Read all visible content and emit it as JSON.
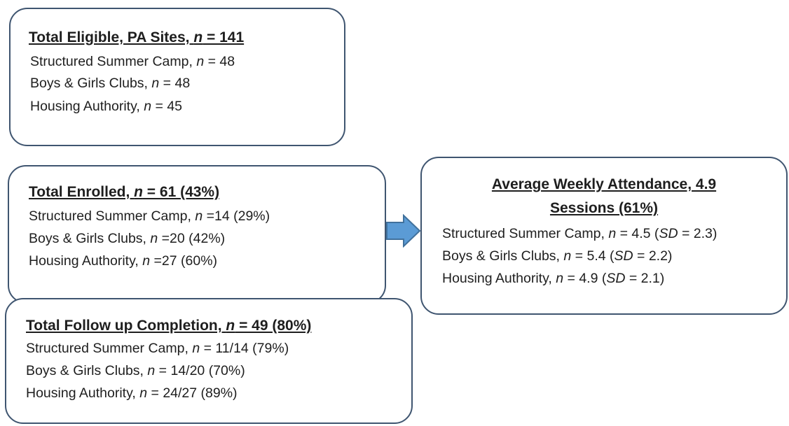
{
  "boxes": [
    {
      "title": [
        "Total Eligible, PA Sites, ",
        "n",
        " = 141"
      ],
      "lines": [
        [
          "Structured Summer Camp, ",
          "n",
          " = 48"
        ],
        [
          "Boys & Girls Clubs, ",
          "n",
          " = 48"
        ],
        [
          "Housing Authority, ",
          "n",
          " = 45"
        ]
      ]
    },
    {
      "title": [
        "Total Enrolled, ",
        "n",
        " = 61 (43%)"
      ],
      "lines": [
        [
          "Structured Summer Camp, ",
          "n",
          " =14 (29%)"
        ],
        [
          "Boys & Girls Clubs, ",
          "n",
          " =20 (42%)"
        ],
        [
          "Housing Authority, ",
          "n",
          " =27 (60%)"
        ]
      ]
    },
    {
      "title": [
        "Total Follow up Completion, ",
        "n",
        " = 49 (80%)"
      ],
      "lines": [
        [
          "Structured Summer Camp, ",
          "n",
          " = 11/14 (79%)"
        ],
        [
          "Boys & Girls Clubs, ",
          "n",
          " = 14/20 (70%)"
        ],
        [
          "Housing Authority, ",
          "n",
          " = 24/27 (89%)"
        ]
      ]
    },
    {
      "title_lines": [
        "Average Weekly Attendance, 4.9",
        "Sessions (61%)"
      ],
      "lines": [
        [
          "Structured Summer Camp, ",
          "n",
          " = 4.5 (",
          "SD",
          " = 2.3)"
        ],
        [
          "Boys & Girls Clubs, ",
          "n",
          " = 5.4 (",
          "SD",
          " = 2.2)"
        ],
        [
          "Housing Authority, ",
          "n",
          " = 4.9 (",
          "SD",
          " = 2.1)"
        ]
      ]
    }
  ],
  "colors": {
    "border": "#3f5570",
    "arrow_fill": "#5b9bd5",
    "arrow_stroke": "#41719c",
    "text": "#1e1e1e"
  }
}
